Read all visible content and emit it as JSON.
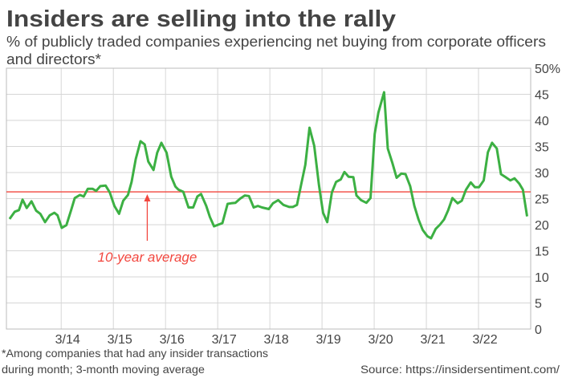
{
  "chart_data": {
    "type": "line",
    "title": "Insiders are selling into the rally",
    "subtitle_lines": [
      "% of publicly traded companies experiencing net buying from corporate officers",
      "and directors*"
    ],
    "footnote_lines": [
      "*Among companies that had any insider transactions",
      "during month; 3-month moving average"
    ],
    "source": "Source: https://insidersentiment.com/",
    "xlabel": "",
    "ylabel": "",
    "xlim": [
      2013.12,
      2023.17
    ],
    "ylim": [
      0,
      50
    ],
    "x_ticks": [
      2014.17,
      2015.17,
      2016.17,
      2017.17,
      2018.17,
      2019.17,
      2020.17,
      2021.17,
      2022.17
    ],
    "x_tick_labels": [
      "3/14",
      "3/15",
      "3/16",
      "3/17",
      "3/18",
      "3/19",
      "3/20",
      "3/21",
      "3/22"
    ],
    "y_ticks": [
      0,
      5,
      10,
      15,
      20,
      25,
      30,
      35,
      40,
      45,
      50
    ],
    "y_tick_labels": [
      "0",
      "5",
      "10",
      "15",
      "20",
      "25",
      "30",
      "35",
      "40",
      "45",
      "50%"
    ],
    "y_axis_side": "right",
    "grid": true,
    "line_color": "#3cb043",
    "reference_line": {
      "value": 26.3,
      "label": "10-year average",
      "color": "#f2473f",
      "arrow_x": 2015.82
    },
    "series": [
      {
        "x": [
          2013.18,
          2013.28,
          2013.36,
          2013.43,
          2013.51,
          2013.6,
          2013.69,
          2013.77,
          2013.86,
          2013.95,
          2014.04,
          2014.1,
          2014.18,
          2014.27,
          2014.36,
          2014.43,
          2014.53,
          2014.6,
          2014.68,
          2014.77,
          2014.84,
          2014.92,
          2015.02,
          2015.1,
          2015.19,
          2015.28,
          2015.36,
          2015.45,
          2015.52,
          2015.6,
          2015.69,
          2015.77,
          2015.84,
          2015.94,
          2016.01,
          2016.09,
          2016.19,
          2016.28,
          2016.36,
          2016.42,
          2016.51,
          2016.61,
          2016.7,
          2016.78,
          2016.85,
          2016.95,
          2017.02,
          2017.1,
          2017.18,
          2017.26,
          2017.36,
          2017.43,
          2017.51,
          2017.6,
          2017.69,
          2017.77,
          2017.86,
          2017.94,
          2018.02,
          2018.15,
          2018.23,
          2018.33,
          2018.43,
          2018.54,
          2018.61,
          2018.69,
          2018.77,
          2018.85,
          2018.93,
          2019.02,
          2019.11,
          2019.19,
          2019.27,
          2019.36,
          2019.44,
          2019.53,
          2019.6,
          2019.68,
          2019.77,
          2019.83,
          2019.92,
          2020.02,
          2020.1,
          2020.18,
          2020.25,
          2020.36,
          2020.43,
          2020.52,
          2020.6,
          2020.69,
          2020.77,
          2020.86,
          2020.94,
          2021.02,
          2021.1,
          2021.19,
          2021.26,
          2021.35,
          2021.43,
          2021.51,
          2021.59,
          2021.67,
          2021.77,
          2021.85,
          2021.93,
          2022.02,
          2022.1,
          2022.18,
          2022.27,
          2022.35,
          2022.43,
          2022.52,
          2022.6,
          2022.69,
          2022.78,
          2022.86,
          2022.95,
          2023.02,
          2023.1
        ],
        "values": [
          21.1,
          22.5,
          22.8,
          24.8,
          23.2,
          24.5,
          22.7,
          22.1,
          20.5,
          21.8,
          22.3,
          21.8,
          19.4,
          19.9,
          22.8,
          25.1,
          25.7,
          25.4,
          26.9,
          26.9,
          26.5,
          27.4,
          27.5,
          26.2,
          23.6,
          22.1,
          24.6,
          25.7,
          28.2,
          32.6,
          36.0,
          35.4,
          32.1,
          30.5,
          33.8,
          35.7,
          33.8,
          29.2,
          27.3,
          26.7,
          26.3,
          23.3,
          23.3,
          25.4,
          25.9,
          23.6,
          21.5,
          19.7,
          20.0,
          20.3,
          24.0,
          24.1,
          24.2,
          25.0,
          25.6,
          25.5,
          23.3,
          23.6,
          23.3,
          23.0,
          24.1,
          24.7,
          23.8,
          23.4,
          23.4,
          23.8,
          27.7,
          31.5,
          38.6,
          35.1,
          27.7,
          22.3,
          20.5,
          26.2,
          28.2,
          28.7,
          30.1,
          29.2,
          29.1,
          25.6,
          24.7,
          24.2,
          25.1,
          37.4,
          41.5,
          45.4,
          34.6,
          31.8,
          29.0,
          29.8,
          29.7,
          27.4,
          23.6,
          21.0,
          19.0,
          17.8,
          17.4,
          19.2,
          20.0,
          21.0,
          22.8,
          25.1,
          24.1,
          24.6,
          26.7,
          28.1,
          27.2,
          27.2,
          28.5,
          33.9,
          35.7,
          34.6,
          29.7,
          29.1,
          28.5,
          28.9,
          27.9,
          26.7,
          21.6
        ]
      }
    ]
  }
}
